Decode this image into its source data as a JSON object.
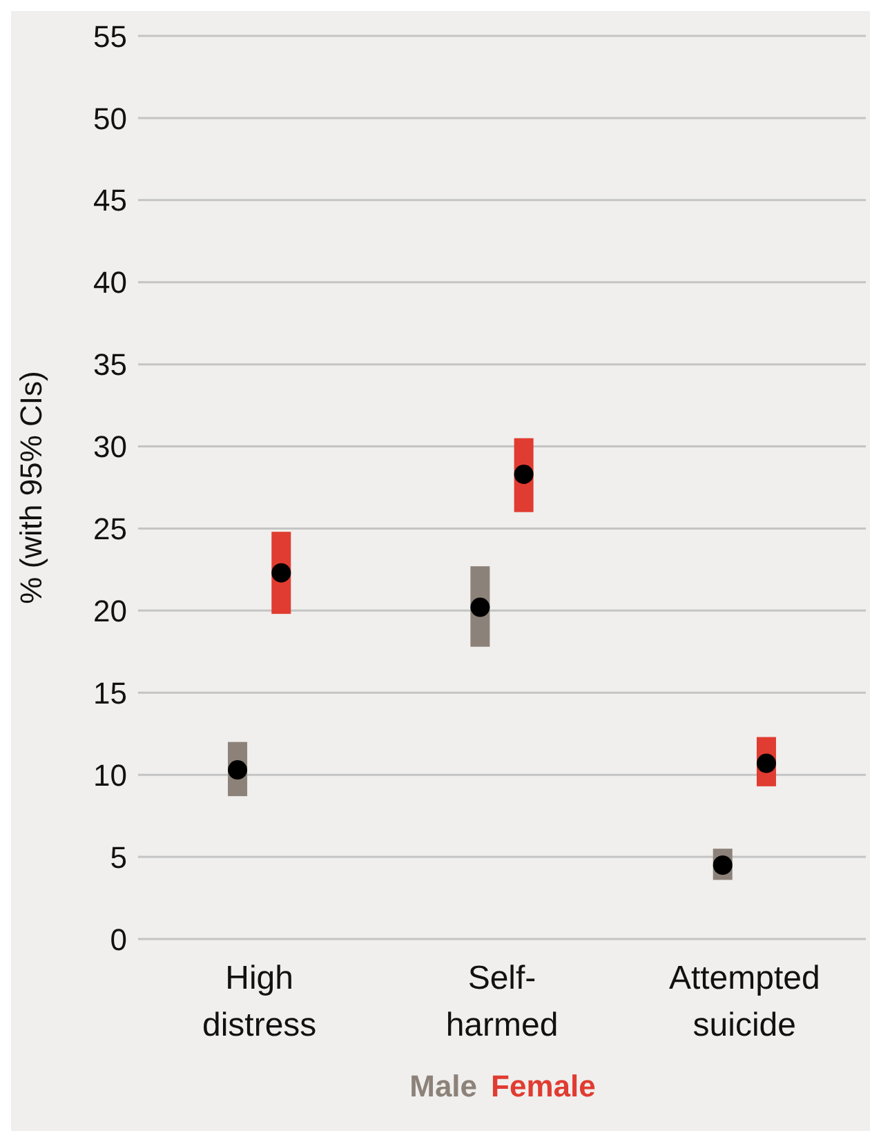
{
  "chart_data": {
    "type": "bar",
    "ylabel": "% (with 95% CIs)",
    "categories": [
      "High distress",
      "Self-harmed",
      "Attempted suicide"
    ],
    "series": [
      {
        "name": "Male",
        "color": "#8c8279",
        "base": [
          8.7,
          17.8,
          3.6
        ],
        "values": [
          3.3,
          4.9,
          1.9
        ]
      },
      {
        "name": "Female",
        "color": "#e03c31",
        "base": [
          19.8,
          26.0,
          9.3
        ],
        "values": [
          5.0,
          4.5,
          3.0
        ]
      },
      {
        "type": "scatter",
        "color": "#000000",
        "x": [
          "High distress",
          "Self-harmed",
          "Attempted suicide"
        ],
        "values": [
          10.3,
          20.2,
          4.5
        ]
      },
      {
        "type": "scatter",
        "color": "#000000",
        "x": [
          "High distress",
          "Self-harmed",
          "Attempted suicide"
        ],
        "values": [
          22.3,
          28.3,
          10.7
        ]
      }
    ],
    "ylim": [
      0,
      55
    ],
    "yticks": [
      0,
      5,
      10,
      15,
      20,
      25,
      30,
      35,
      40,
      45,
      50,
      55
    ],
    "grid": "y",
    "legend": "bottom",
    "marker": "circle"
  }
}
